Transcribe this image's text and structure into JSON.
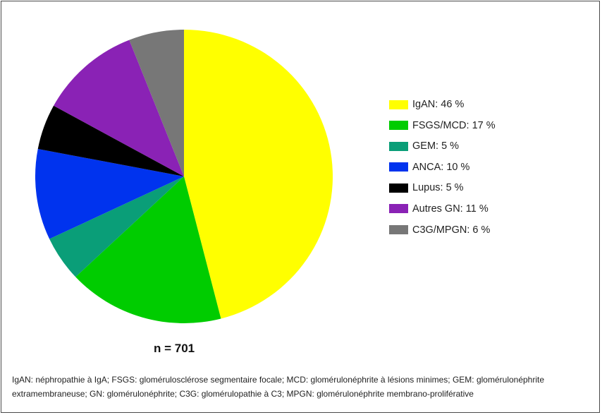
{
  "chart_data": {
    "type": "pie",
    "slices": [
      {
        "label": "IgAN: 46 %",
        "value": 46,
        "color": "#ffff00"
      },
      {
        "label": "FSGS/MCD: 17 %",
        "value": 17,
        "color": "#00cc00"
      },
      {
        "label": "GEM: 5 %",
        "value": 5,
        "color": "#0a9e78"
      },
      {
        "label": "ANCA: 10 %",
        "value": 10,
        "color": "#0033ee"
      },
      {
        "label": "Lupus: 5 %",
        "value": 5,
        "color": "#000000"
      },
      {
        "label": "Autres GN: 11 %",
        "value": 11,
        "color": "#8a22b5"
      },
      {
        "label": "C3G/MPGN: 6 %",
        "value": 6,
        "color": "#777777"
      }
    ],
    "legend_placement": "right",
    "annotation": "n = 701"
  },
  "footnote": "IgAN: néphropathie à IgA; FSGS: glomérulosclérose segmentaire focale; MCD: glomérulonéphrite à lésions minimes; GEM: glomérulonéphrite extramembraneuse; GN: glomérulonéphrite; C3G: glomérulopathie à C3; MPGN: glomérulonéphrite membrano-proliférative"
}
